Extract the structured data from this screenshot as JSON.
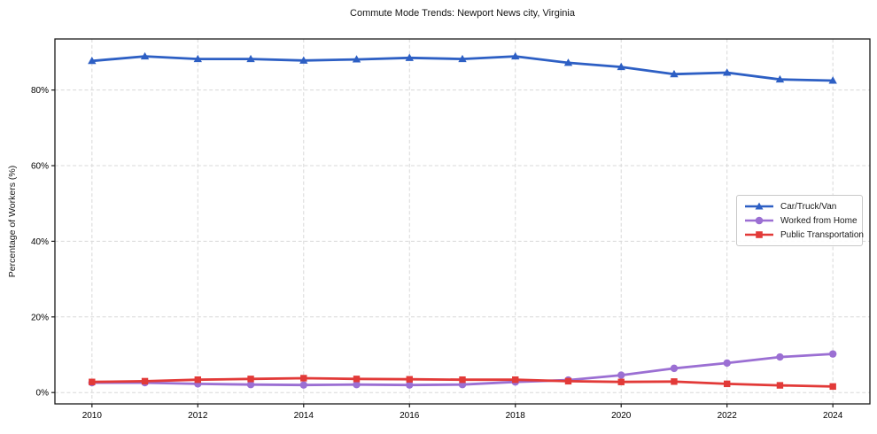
{
  "chart_data": {
    "type": "line",
    "title": "Commute Mode Trends: Newport News city, Virginia",
    "xlabel": "",
    "ylabel": "Percentage of Workers (%)",
    "x": [
      2010,
      2011,
      2012,
      2013,
      2014,
      2015,
      2016,
      2017,
      2018,
      2019,
      2020,
      2021,
      2022,
      2023,
      2024
    ],
    "x_ticks": [
      2010,
      2012,
      2014,
      2016,
      2018,
      2020,
      2022,
      2024
    ],
    "x_tick_labels": [
      "2010",
      "2012",
      "2014",
      "2016",
      "2018",
      "2020",
      "2022",
      "2024"
    ],
    "y_ticks": [
      0,
      20,
      40,
      60,
      80
    ],
    "y_tick_labels": [
      "0%",
      "20%",
      "40%",
      "60%",
      "80%"
    ],
    "xlim": [
      2009.3,
      2024.7
    ],
    "ylim": [
      -3,
      93.5
    ],
    "grid": true,
    "grid_style": "dashed",
    "legend_position": "center-right",
    "series": [
      {
        "name": "Car/Truck/Van",
        "color": "#2d5fc4",
        "marker": "triangle",
        "values": [
          87.7,
          88.9,
          88.2,
          88.2,
          87.8,
          88.1,
          88.5,
          88.2,
          88.9,
          87.2,
          86.1,
          84.2,
          84.6,
          82.8,
          82.5
        ]
      },
      {
        "name": "Worked from Home",
        "color": "#9b6fd3",
        "marker": "circle",
        "values": [
          2.6,
          2.6,
          2.3,
          2.1,
          2.0,
          2.1,
          2.0,
          2.1,
          2.8,
          3.3,
          4.6,
          6.4,
          7.8,
          9.4,
          10.2
        ]
      },
      {
        "name": "Public Transportation",
        "color": "#e23a38",
        "marker": "square",
        "values": [
          2.8,
          3.0,
          3.4,
          3.6,
          3.8,
          3.6,
          3.5,
          3.4,
          3.4,
          3.0,
          2.8,
          2.9,
          2.3,
          1.9,
          1.6
        ]
      }
    ]
  }
}
